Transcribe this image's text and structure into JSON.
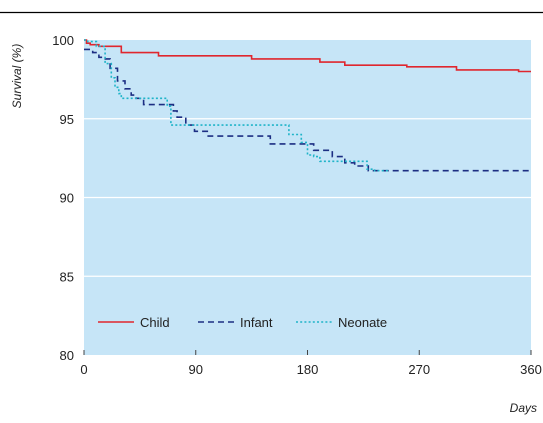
{
  "chart_data": {
    "type": "line",
    "title": "",
    "xlabel": "Days",
    "ylabel": "Survival (%)",
    "xlim": [
      0,
      360
    ],
    "ylim": [
      80,
      100
    ],
    "x_ticks": [
      0,
      90,
      180,
      270,
      360
    ],
    "y_ticks": [
      80,
      85,
      90,
      95,
      100
    ],
    "grid": true,
    "step": true,
    "legend_position": "bottom-left",
    "colors": {
      "plot_background": "#c6e5f7",
      "grid": "#ffffff",
      "top_rule": "#000000"
    },
    "series": [
      {
        "name": "Child",
        "color": "#e0262e",
        "dash": "solid",
        "x": [
          0,
          2,
          5,
          12,
          30,
          60,
          135,
          190,
          210,
          260,
          300,
          350,
          360
        ],
        "y": [
          100,
          99.8,
          99.7,
          99.6,
          99.2,
          99.0,
          98.8,
          98.6,
          98.4,
          98.3,
          98.1,
          98.0,
          98.0
        ]
      },
      {
        "name": "Infant",
        "color": "#1c2e83",
        "dash": "dashed",
        "x": [
          0,
          7,
          12,
          15,
          21,
          27,
          33,
          38,
          42,
          48,
          61,
          72,
          75,
          82,
          89,
          100,
          130,
          150,
          180,
          185,
          200,
          210,
          218,
          229,
          236,
          250,
          300,
          360
        ],
        "y": [
          99.4,
          99.2,
          98.9,
          98.8,
          98.2,
          97.4,
          96.9,
          96.5,
          96.3,
          95.9,
          95.9,
          95.5,
          95.1,
          94.6,
          94.2,
          93.9,
          93.9,
          93.4,
          93.4,
          93.0,
          92.6,
          92.2,
          92.0,
          91.7,
          91.7,
          91.7,
          91.7,
          91.7
        ]
      },
      {
        "name": "Neonate",
        "color": "#1fb4c8",
        "dash": "dotted",
        "x": [
          0,
          3,
          10,
          17,
          22,
          25,
          28,
          30,
          35,
          60,
          67,
          70,
          80,
          90,
          120,
          160,
          165,
          175,
          180,
          185,
          190,
          215,
          222,
          228,
          234,
          245
        ],
        "y": [
          100,
          99.9,
          99.6,
          98.5,
          97.6,
          97.0,
          96.6,
          96.3,
          96.3,
          96.3,
          95.8,
          94.6,
          94.6,
          94.6,
          94.6,
          94.6,
          94.0,
          93.5,
          92.7,
          92.6,
          92.3,
          92.3,
          92.3,
          91.8,
          91.7,
          91.7
        ]
      }
    ]
  }
}
